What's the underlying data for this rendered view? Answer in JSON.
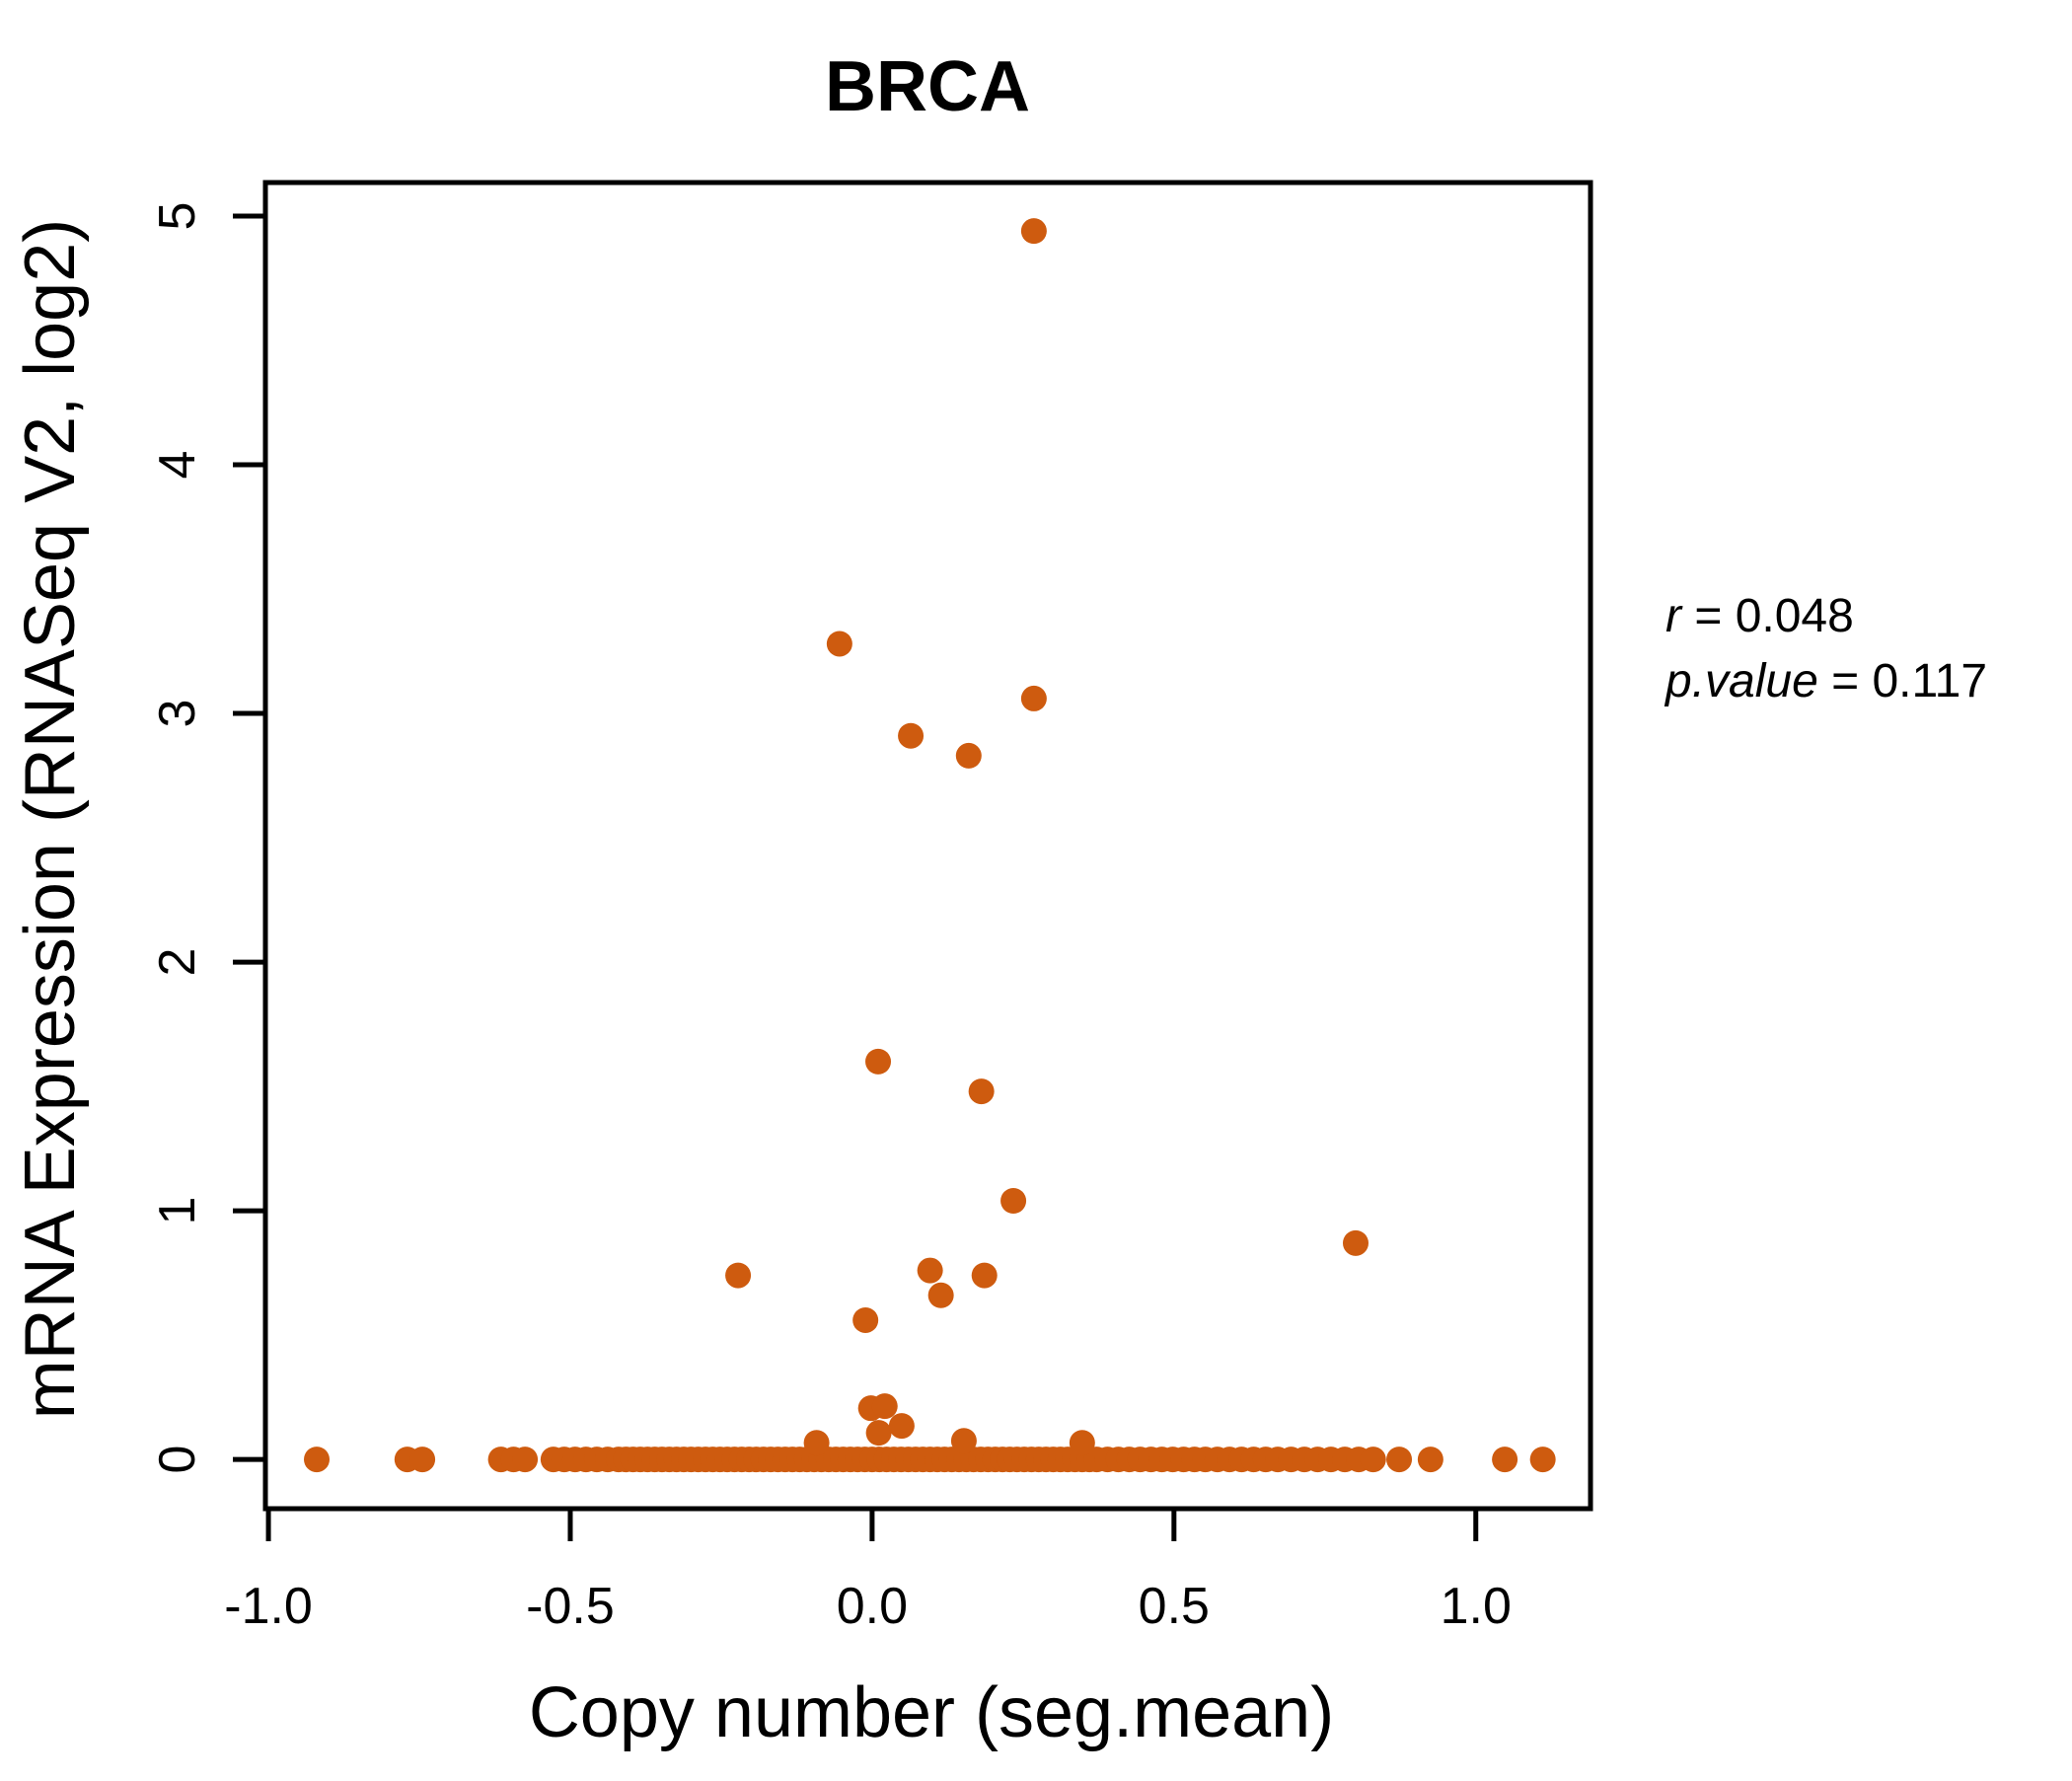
{
  "chart_data": {
    "type": "scatter",
    "title": "BRCA",
    "xlabel": "Copy number (seg.mean)",
    "ylabel": "mRNA Expression (RNASeq V2, log2)",
    "title_color": "#D2691E",
    "point_color": "#CE5B0F",
    "xlim": [
      -1.005,
      1.19
    ],
    "ylim": [
      -0.198,
      5.135
    ],
    "grid": false,
    "legend": "none",
    "x_ticks": {
      "values": [
        -1.0,
        -0.5,
        0.0,
        0.5,
        1.0
      ],
      "labels": [
        "-1.0",
        "-0.5",
        "0.0",
        "0.5",
        "1.0"
      ]
    },
    "y_ticks": {
      "values": [
        0,
        1,
        2,
        3,
        4,
        5
      ],
      "labels": [
        "0",
        "1",
        "2",
        "3",
        "4",
        "5"
      ]
    },
    "annotation": {
      "line1_var": "r",
      "line1_rest": " = 0.048",
      "line2_var": "p.value",
      "line2_rest": " = 0.117"
    },
    "scatter_points": [
      [
        0.268,
        4.94
      ],
      [
        -0.054,
        3.28
      ],
      [
        0.268,
        3.06
      ],
      [
        0.064,
        2.91
      ],
      [
        0.16,
        2.83
      ],
      [
        0.01,
        1.6
      ],
      [
        0.181,
        1.48
      ],
      [
        0.234,
        1.04
      ],
      [
        -0.222,
        0.74
      ],
      [
        0.096,
        0.76
      ],
      [
        0.186,
        0.74
      ],
      [
        0.114,
        0.66
      ],
      [
        -0.011,
        0.56
      ],
      [
        0.801,
        0.87
      ],
      [
        -0.002,
        0.206
      ],
      [
        0.021,
        0.214
      ],
      [
        0.011,
        0.107
      ],
      [
        0.049,
        0.135
      ],
      [
        -0.092,
        0.067
      ],
      [
        0.152,
        0.075
      ],
      [
        0.348,
        0.067
      ]
    ],
    "baseline_y": 0,
    "baseline_points_x": [
      -0.92,
      -0.77,
      -0.745,
      -0.615,
      -0.594,
      -0.575,
      -0.528,
      -0.51,
      -0.492,
      -0.474,
      -0.456,
      -0.438,
      -0.42,
      -0.408,
      -0.396,
      -0.384,
      -0.372,
      -0.36,
      -0.348,
      -0.336,
      -0.324,
      -0.312,
      -0.3,
      -0.288,
      -0.276,
      -0.264,
      -0.252,
      -0.24,
      -0.228,
      -0.216,
      -0.204,
      -0.192,
      -0.18,
      -0.168,
      -0.156,
      -0.144,
      -0.132,
      -0.12,
      -0.108,
      -0.096,
      -0.084,
      -0.072,
      -0.06,
      -0.048,
      -0.036,
      -0.024,
      -0.012,
      0,
      0.012,
      0.024,
      0.036,
      0.048,
      0.06,
      0.072,
      0.084,
      0.096,
      0.108,
      0.12,
      0.132,
      0.144,
      0.156,
      0.168,
      0.18,
      0.192,
      0.204,
      0.216,
      0.228,
      0.24,
      0.252,
      0.264,
      0.276,
      0.288,
      0.3,
      0.312,
      0.324,
      0.336,
      0.348,
      0.36,
      0.372,
      0.39,
      0.408,
      0.426,
      0.444,
      0.462,
      0.48,
      0.498,
      0.516,
      0.534,
      0.552,
      0.572,
      0.592,
      0.612,
      0.632,
      0.652,
      0.672,
      0.694,
      0.716,
      0.738,
      0.76,
      0.783,
      0.806,
      0.83,
      0.873,
      0.925,
      1.048,
      1.111
    ]
  }
}
